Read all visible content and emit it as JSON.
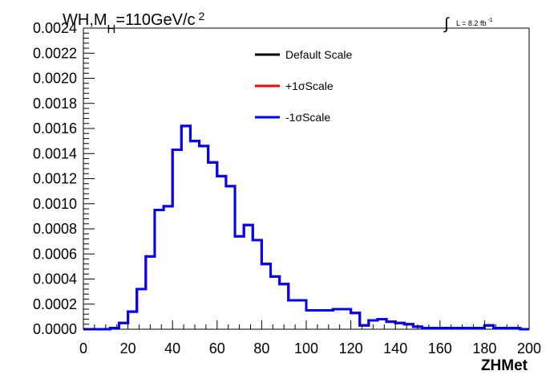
{
  "chart_data": {
    "type": "line",
    "title_parts": {
      "main": "WH,M",
      "sub": "H",
      "rest": "=110GeV/c",
      "sup": "2"
    },
    "lumi_parts": {
      "integral": "∫",
      "text": "L = 8.2 fb",
      "sup": "-1"
    },
    "xlabel": "ZHMet",
    "ylabel": "",
    "xlim": [
      0,
      200
    ],
    "ylim": [
      0,
      0.0024
    ],
    "x_ticks": [
      "0",
      "20",
      "40",
      "60",
      "80",
      "100",
      "120",
      "140",
      "160",
      "180",
      "200"
    ],
    "y_ticks": [
      "0.0000",
      "0.0002",
      "0.0004",
      "0.0006",
      "0.0008",
      "0.0010",
      "0.0012",
      "0.0014",
      "0.0016",
      "0.0018",
      "0.0020",
      "0.0022",
      "0.0024"
    ],
    "legend_position": "top-center",
    "bin_width": 4,
    "series": [
      {
        "name": "Default Scale",
        "color": "#000000",
        "values": [
          0.0,
          0.0,
          0.0,
          1e-05,
          5e-05,
          0.00014,
          0.00032,
          0.00058,
          0.00095,
          0.00098,
          0.00143,
          0.00162,
          0.0015,
          0.00146,
          0.00133,
          0.00122,
          0.00114,
          0.00074,
          0.00083,
          0.00071,
          0.00052,
          0.00042,
          0.00036,
          0.00023,
          0.00023,
          0.00015,
          0.00015,
          0.00015,
          0.00016,
          0.00016,
          0.00013,
          3e-05,
          7e-05,
          8e-05,
          6e-05,
          5e-05,
          4e-05,
          2e-05,
          1e-05,
          1e-05,
          1e-05,
          1e-05,
          1e-05,
          1e-05,
          1e-05,
          3e-05,
          1e-05,
          1e-05,
          1e-05,
          0.0
        ]
      },
      {
        "name": "+1σScale",
        "color": "#ff0000",
        "values": [
          0.0,
          0.0,
          0.0,
          1e-05,
          5e-05,
          0.00014,
          0.00032,
          0.00058,
          0.00095,
          0.00098,
          0.00143,
          0.00162,
          0.0015,
          0.00146,
          0.00133,
          0.00122,
          0.00114,
          0.00074,
          0.00083,
          0.00071,
          0.00052,
          0.00042,
          0.00036,
          0.00023,
          0.00023,
          0.00015,
          0.00015,
          0.00015,
          0.00016,
          0.00016,
          0.00013,
          3e-05,
          7e-05,
          8e-05,
          6e-05,
          5e-05,
          4e-05,
          2e-05,
          1e-05,
          1e-05,
          1e-05,
          1e-05,
          1e-05,
          1e-05,
          1e-05,
          3e-05,
          1e-05,
          1e-05,
          1e-05,
          0.0
        ]
      },
      {
        "name": "-1σScale",
        "color": "#0000ff",
        "values": [
          0.0,
          0.0,
          0.0,
          1e-05,
          5e-05,
          0.00014,
          0.00032,
          0.00058,
          0.00095,
          0.00098,
          0.00143,
          0.00162,
          0.0015,
          0.00146,
          0.00133,
          0.00122,
          0.00114,
          0.00074,
          0.00083,
          0.00071,
          0.00052,
          0.00042,
          0.00036,
          0.00023,
          0.00023,
          0.00015,
          0.00015,
          0.00015,
          0.00016,
          0.00016,
          0.00013,
          3e-05,
          7e-05,
          8e-05,
          6e-05,
          5e-05,
          4e-05,
          2e-05,
          1e-05,
          1e-05,
          1e-05,
          1e-05,
          1e-05,
          1e-05,
          1e-05,
          3e-05,
          1e-05,
          1e-05,
          1e-05,
          0.0
        ]
      }
    ]
  }
}
